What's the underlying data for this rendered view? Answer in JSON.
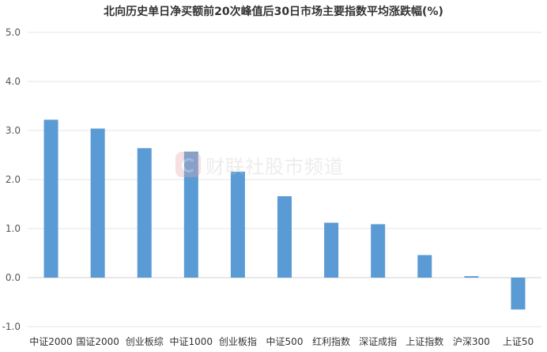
{
  "chart_data": {
    "type": "bar",
    "title": "北向历史单日净买额前20次峰值后30日市场主要指数平均涨跌幅(%)",
    "categories": [
      "中证2000",
      "国证2000",
      "创业板综",
      "中证1000",
      "创业板指",
      "中证500",
      "红利指数",
      "深证成指",
      "上证指数",
      "沪深300",
      "上证50"
    ],
    "values": [
      3.22,
      3.04,
      2.64,
      2.57,
      2.16,
      1.66,
      1.12,
      1.09,
      0.46,
      0.03,
      -0.65
    ],
    "ylim": [
      -1.0,
      5.0
    ],
    "yticks": [
      "5.0",
      "4.0",
      "3.0",
      "2.0",
      "1.0",
      "0.0",
      "-1.0"
    ],
    "ytick_values": [
      5,
      4,
      3,
      2,
      1,
      0,
      -1
    ],
    "bar_color": "#5b9bd5",
    "grid_color": "#e6e6e6",
    "grid": true,
    "legend": "none",
    "xlabel": "",
    "ylabel": ""
  },
  "watermark": {
    "text": "财联社股市频道",
    "logo_icon": "cls-logo-icon"
  }
}
